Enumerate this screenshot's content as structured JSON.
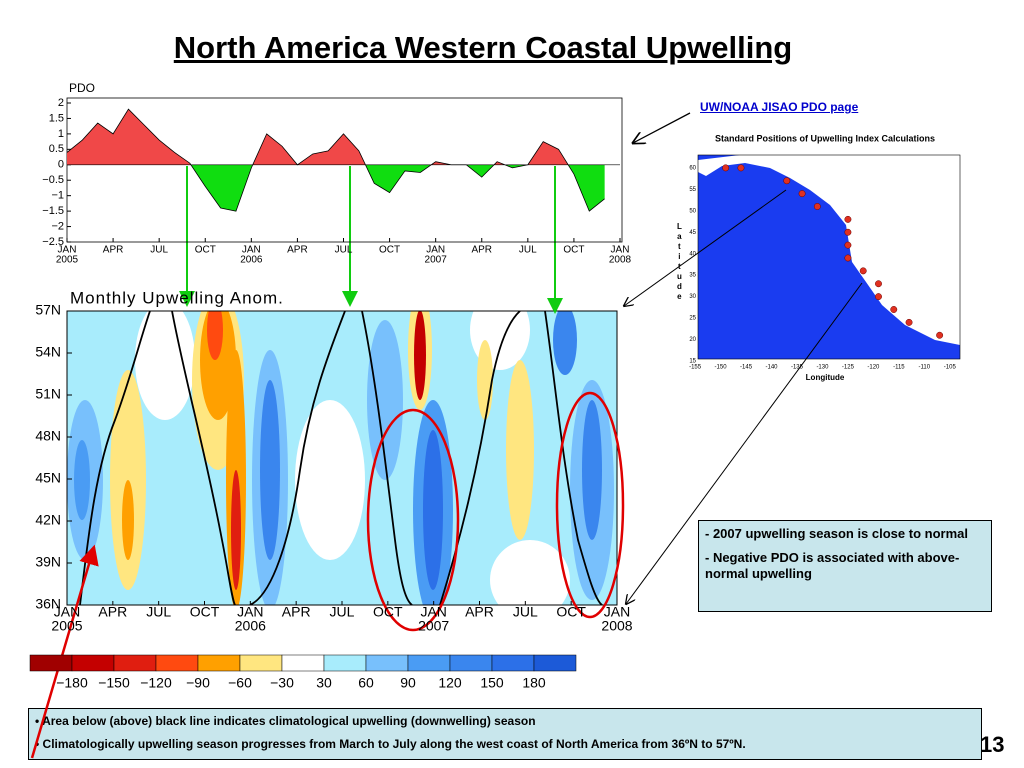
{
  "title": "North America Western Coastal Upwelling",
  "link": "UW/NOAA JISAO PDO page ",
  "note_box": [
    "- 2007 upwelling season is close to normal",
    "- Negative PDO is associated with above-normal upwelling"
  ],
  "footer_bullets": [
    "• Area below (above) black line indicates climatological upwelling (downwelling) season",
    "• Climatologically upwelling season progresses from March to July along the west coast of North America from 36ºN to 57ºN."
  ],
  "page_number": "13",
  "chart_data": [
    {
      "type": "area",
      "title": "PDO",
      "x": [
        "2005-01",
        "2005-02",
        "2005-03",
        "2005-04",
        "2005-05",
        "2005-06",
        "2005-07",
        "2005-08",
        "2005-09",
        "2005-10",
        "2005-11",
        "2005-12",
        "2006-01",
        "2006-02",
        "2006-03",
        "2006-04",
        "2006-05",
        "2006-06",
        "2006-07",
        "2006-08",
        "2006-09",
        "2006-10",
        "2006-11",
        "2006-12",
        "2007-01",
        "2007-02",
        "2007-03",
        "2007-04",
        "2007-05",
        "2007-06",
        "2007-07",
        "2007-08",
        "2007-09",
        "2007-10",
        "2007-11",
        "2007-12"
      ],
      "values": [
        0.4,
        0.8,
        1.35,
        1.0,
        1.8,
        1.3,
        0.8,
        0.4,
        0.05,
        -0.7,
        -1.4,
        -1.5,
        -0.1,
        1.0,
        0.6,
        0.0,
        0.35,
        0.45,
        1.0,
        0.45,
        -0.6,
        -0.9,
        -0.2,
        -0.25,
        0.1,
        0.0,
        0.0,
        -0.4,
        0.1,
        -0.1,
        0.0,
        0.75,
        0.5,
        -0.3,
        -1.5,
        -1.1
      ],
      "positive_color": "#f04848",
      "negative_color": "#10dd10",
      "xlim": [
        "2005-01",
        "2008-01"
      ],
      "xticks": [
        {
          "value": "2005-01",
          "label": "JAN",
          "year": "2005"
        },
        {
          "value": "2005-04",
          "label": "APR"
        },
        {
          "value": "2005-07",
          "label": "JUL"
        },
        {
          "value": "2005-10",
          "label": "OCT"
        },
        {
          "value": "2006-01",
          "label": "JAN",
          "year": "2006"
        },
        {
          "value": "2006-04",
          "label": "APR"
        },
        {
          "value": "2006-07",
          "label": "JUL"
        },
        {
          "value": "2006-10",
          "label": "OCT"
        },
        {
          "value": "2007-01",
          "label": "JAN",
          "year": "2007"
        },
        {
          "value": "2007-04",
          "label": "APR"
        },
        {
          "value": "2007-07",
          "label": "JUL"
        },
        {
          "value": "2007-10",
          "label": "OCT"
        },
        {
          "value": "2008-01",
          "label": "JAN",
          "year": "2008"
        }
      ],
      "ylim": [
        -2.5,
        2
      ],
      "yticks": [
        {
          "value": -2.5,
          "label": "−2.5"
        },
        {
          "value": -2,
          "label": "−2"
        },
        {
          "value": -1.5,
          "label": "−1.5"
        },
        {
          "value": -1,
          "label": "−1"
        },
        {
          "value": -0.5,
          "label": "−0.5"
        },
        0,
        0.5,
        1,
        1.5,
        2
      ]
    },
    {
      "type": "contour",
      "title": "Monthly Upwelling Anom.",
      "xlim": [
        "2005-01",
        "2008-01"
      ],
      "xticks": [
        {
          "value": "2005-01",
          "label": "JAN",
          "year": "2005"
        },
        {
          "value": "2005-04",
          "label": "APR"
        },
        {
          "value": "2005-07",
          "label": "JUL"
        },
        {
          "value": "2005-10",
          "label": "OCT"
        },
        {
          "value": "2006-01",
          "label": "JAN",
          "year": "2006"
        },
        {
          "value": "2006-04",
          "label": "APR"
        },
        {
          "value": "2006-07",
          "label": "JUL"
        },
        {
          "value": "2006-10",
          "label": "OCT"
        },
        {
          "value": "2007-01",
          "label": "JAN",
          "year": "2007"
        },
        {
          "value": "2007-04",
          "label": "APR"
        },
        {
          "value": "2007-07",
          "label": "JUL"
        },
        {
          "value": "2007-10",
          "label": "OCT"
        },
        {
          "value": "2008-01",
          "label": "JAN",
          "year": "2008"
        }
      ],
      "ylim": [
        36,
        57
      ],
      "yticks": [
        {
          "value": 57,
          "label": "57N"
        },
        {
          "value": 54,
          "label": "54N"
        },
        {
          "value": 51,
          "label": "51N"
        },
        {
          "value": 48,
          "label": "48N"
        },
        {
          "value": 45,
          "label": "45N"
        },
        {
          "value": 42,
          "label": "42N"
        },
        {
          "value": 39,
          "label": "39N"
        },
        {
          "value": 36,
          "label": "36N"
        }
      ],
      "colorbar": {
        "colors": [
          "#a00000",
          "#c40000",
          "#e01e10",
          "#ff4a10",
          "#ffa000",
          "#ffe680",
          "#ffffff",
          "#a8ecfc",
          "#78c0fc",
          "#4a9cf4",
          "#3a86ee",
          "#2c70e8",
          "#1c5ad8"
        ],
        "ticks": [
          {
            "value": -180,
            "label": "−180"
          },
          {
            "value": -150,
            "label": "−150"
          },
          {
            "value": -120,
            "label": "−120"
          },
          {
            "value": -90,
            "label": "−90"
          },
          {
            "value": -60,
            "label": "−60"
          },
          {
            "value": -30,
            "label": "−30"
          },
          30,
          60,
          90,
          120,
          150,
          180
        ]
      }
    },
    {
      "type": "scatter",
      "title": "Standard Positions of Upwelling Index Calculations",
      "xlabel": "Longitude",
      "ylabel": "Latitude",
      "x": [
        -149,
        -146,
        -137,
        -134,
        -131,
        -125,
        -125,
        -125,
        -125,
        -122,
        -119,
        -119,
        -116,
        -113,
        -107
      ],
      "values": [
        60,
        60,
        57,
        54,
        51,
        48,
        45,
        42,
        39,
        36,
        33,
        30,
        27,
        24,
        21
      ],
      "color": "#e03020",
      "xlim": [
        -156,
        -103
      ],
      "ylim": [
        15,
        63
      ],
      "xticks": [
        -155,
        -150,
        -145,
        -140,
        -135,
        -130,
        -125,
        -120,
        -115,
        -110,
        -105
      ],
      "yticks": [
        15,
        20,
        25,
        30,
        35,
        40,
        45,
        50,
        55,
        60
      ]
    }
  ]
}
